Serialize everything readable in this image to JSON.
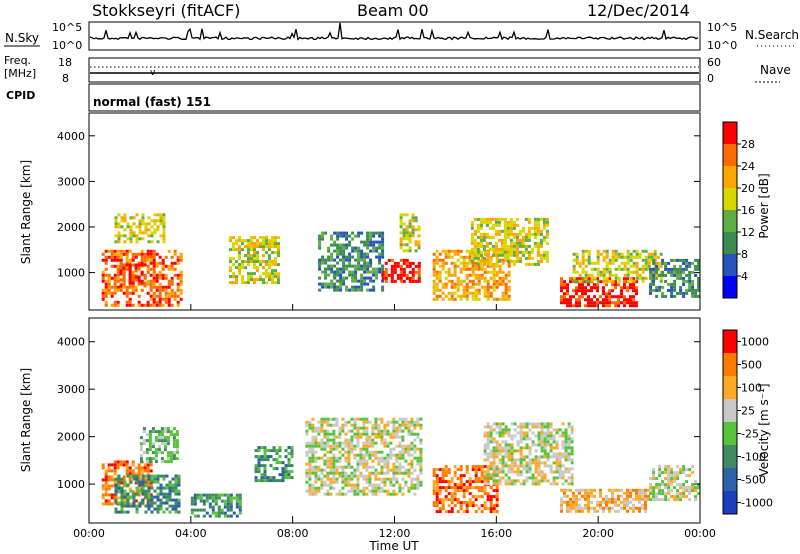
{
  "header": {
    "station": "Stokkseyri (fitACF)",
    "beam": "Beam 00",
    "date": "12/Dec/2014"
  },
  "nsky_panel": {
    "label": "N.Sky",
    "left_ticks": [
      "10^5",
      "10^0"
    ],
    "right_ticks": [
      "10^5",
      "10^0"
    ],
    "right_label": "N.Search"
  },
  "freq_panel": {
    "label_line1": "Freq.",
    "label_line2": "[MHz]",
    "left_ticks": [
      "18",
      "8"
    ],
    "right_ticks": [
      "60",
      "0"
    ],
    "right_label": "Nave"
  },
  "cpid_panel": {
    "label": "CPID",
    "text": "normal (fast) 151"
  },
  "colors": {
    "power_scale": [
      "#0000ff",
      "#2a52be",
      "#3c8c50",
      "#5fae45",
      "#d7d700",
      "#ffa500",
      "#ff6a00",
      "#ff0000"
    ],
    "velocity_scale": [
      "#1d3fbf",
      "#2e62a8",
      "#3f8a62",
      "#55c43a",
      "#c8c8c8",
      "#ffaa22",
      "#ff7a00",
      "#ff0000"
    ]
  },
  "chart_data": [
    {
      "type": "heatmap",
      "name": "power",
      "ylabel": "Slant Range [km]",
      "yticks": [
        "1000",
        "2000",
        "3000",
        "4000"
      ],
      "ylim": [
        180,
        4500
      ],
      "colorbar_label": "Power [dB]",
      "colorbar_ticks": [
        "4",
        "8",
        "12",
        "16",
        "20",
        "24",
        "28"
      ],
      "echo_regions": [
        {
          "t": [
            0.5,
            3.6
          ],
          "range": [
            300,
            1500
          ],
          "level": 6
        },
        {
          "t": [
            1.2,
            2.2
          ],
          "range": [
            700,
            1200
          ],
          "level": 7
        },
        {
          "t": [
            1.0,
            3.0
          ],
          "range": [
            1700,
            2300
          ],
          "level": 4
        },
        {
          "t": [
            5.5,
            7.5
          ],
          "range": [
            800,
            1800
          ],
          "level": 4
        },
        {
          "t": [
            9.0,
            11.5
          ],
          "range": [
            600,
            1900
          ],
          "level": 2
        },
        {
          "t": [
            11.5,
            13.0
          ],
          "range": [
            800,
            1300
          ],
          "level": 7
        },
        {
          "t": [
            12.2,
            13.0
          ],
          "range": [
            1500,
            2300
          ],
          "level": 4
        },
        {
          "t": [
            13.5,
            16.5
          ],
          "range": [
            400,
            1500
          ],
          "level": 5
        },
        {
          "t": [
            15.0,
            18.0
          ],
          "range": [
            1200,
            2200
          ],
          "level": 4
        },
        {
          "t": [
            18.5,
            21.5
          ],
          "range": [
            300,
            900
          ],
          "level": 7
        },
        {
          "t": [
            19.0,
            22.5
          ],
          "range": [
            800,
            1500
          ],
          "level": 4
        },
        {
          "t": [
            22.0,
            24.0
          ],
          "range": [
            500,
            1300
          ],
          "level": 2
        }
      ]
    },
    {
      "type": "heatmap",
      "name": "velocity",
      "ylabel": "Slant Range [km]",
      "yticks": [
        "1000",
        "2000",
        "3000",
        "4000"
      ],
      "ylim": [
        180,
        4500
      ],
      "xlabel": "Time UT",
      "xticks": [
        "00:00",
        "04:00",
        "08:00",
        "12:00",
        "16:00",
        "20:00",
        "00:00"
      ],
      "xlim": [
        0,
        24
      ],
      "colorbar_label": "Velocity [m s⁻¹]",
      "colorbar_ticks": [
        "1000",
        "500",
        "100",
        "25",
        "-25",
        "-100",
        "-500",
        "-1000"
      ],
      "echo_regions": [
        {
          "t": [
            0.5,
            2.5
          ],
          "range": [
            600,
            1500
          ],
          "level": 6
        },
        {
          "t": [
            1.0,
            3.5
          ],
          "range": [
            400,
            1200
          ],
          "level": 2
        },
        {
          "t": [
            2.0,
            3.5
          ],
          "range": [
            1500,
            2200
          ],
          "level": 3
        },
        {
          "t": [
            4.0,
            6.0
          ],
          "range": [
            300,
            800
          ],
          "level": 2
        },
        {
          "t": [
            6.5,
            8.0
          ],
          "range": [
            1100,
            1800
          ],
          "level": 2
        },
        {
          "t": [
            8.5,
            13.0
          ],
          "range": [
            800,
            2400
          ],
          "level": 4
        },
        {
          "t": [
            13.5,
            16.0
          ],
          "range": [
            400,
            1400
          ],
          "level": 6
        },
        {
          "t": [
            15.5,
            19.0
          ],
          "range": [
            1000,
            2300
          ],
          "level": 4
        },
        {
          "t": [
            18.5,
            22.0
          ],
          "range": [
            400,
            900
          ],
          "level": 5
        },
        {
          "t": [
            22.0,
            24.0
          ],
          "range": [
            700,
            1400
          ],
          "level": 4
        }
      ]
    }
  ]
}
